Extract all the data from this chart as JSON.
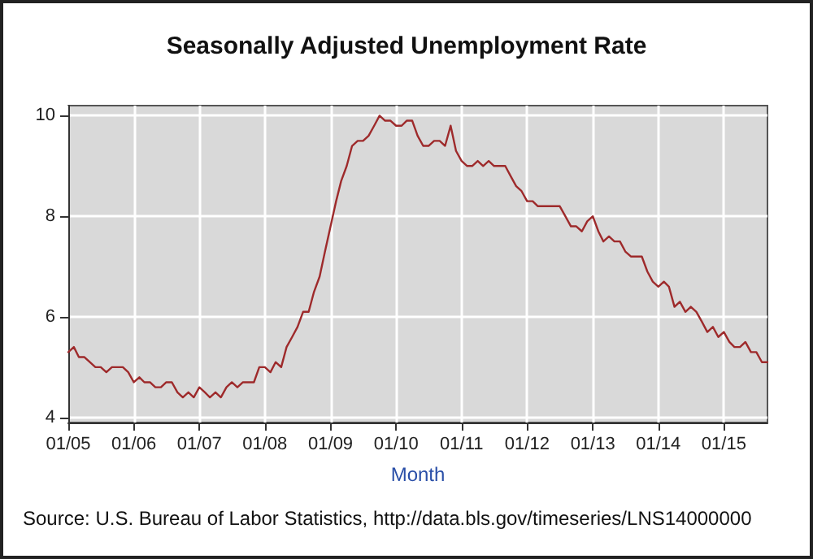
{
  "chart_data": {
    "type": "line",
    "title": "Seasonally Adjusted Unemployment Rate",
    "xlabel": "Month",
    "annotations": [
      "Source: U.S. Bureau of Labor Statistics, http://data.bls.gov/timeseries/LNS14000000"
    ],
    "x": [
      "2005-01",
      "2005-02",
      "2005-03",
      "2005-04",
      "2005-05",
      "2005-06",
      "2005-07",
      "2005-08",
      "2005-09",
      "2005-10",
      "2005-11",
      "2005-12",
      "2006-01",
      "2006-02",
      "2006-03",
      "2006-04",
      "2006-05",
      "2006-06",
      "2006-07",
      "2006-08",
      "2006-09",
      "2006-10",
      "2006-11",
      "2006-12",
      "2007-01",
      "2007-02",
      "2007-03",
      "2007-04",
      "2007-05",
      "2007-06",
      "2007-07",
      "2007-08",
      "2007-09",
      "2007-10",
      "2007-11",
      "2007-12",
      "2008-01",
      "2008-02",
      "2008-03",
      "2008-04",
      "2008-05",
      "2008-06",
      "2008-07",
      "2008-08",
      "2008-09",
      "2008-10",
      "2008-11",
      "2008-12",
      "2009-01",
      "2009-02",
      "2009-03",
      "2009-04",
      "2009-05",
      "2009-06",
      "2009-07",
      "2009-08",
      "2009-09",
      "2009-10",
      "2009-11",
      "2009-12",
      "2010-01",
      "2010-02",
      "2010-03",
      "2010-04",
      "2010-05",
      "2010-06",
      "2010-07",
      "2010-08",
      "2010-09",
      "2010-10",
      "2010-11",
      "2010-12",
      "2011-01",
      "2011-02",
      "2011-03",
      "2011-04",
      "2011-05",
      "2011-06",
      "2011-07",
      "2011-08",
      "2011-09",
      "2011-10",
      "2011-11",
      "2011-12",
      "2012-01",
      "2012-02",
      "2012-03",
      "2012-04",
      "2012-05",
      "2012-06",
      "2012-07",
      "2012-08",
      "2012-09",
      "2012-10",
      "2012-11",
      "2012-12",
      "2013-01",
      "2013-02",
      "2013-03",
      "2013-04",
      "2013-05",
      "2013-06",
      "2013-07",
      "2013-08",
      "2013-09",
      "2013-10",
      "2013-11",
      "2013-12",
      "2014-01",
      "2014-02",
      "2014-03",
      "2014-04",
      "2014-05",
      "2014-06",
      "2014-07",
      "2014-08",
      "2014-09",
      "2014-10",
      "2014-11",
      "2014-12",
      "2015-01",
      "2015-02",
      "2015-03",
      "2015-04",
      "2015-05",
      "2015-06",
      "2015-07",
      "2015-08",
      "2015-09"
    ],
    "series": [
      {
        "color": "#9e2a2b",
        "values": [
          5.3,
          5.4,
          5.2,
          5.2,
          5.1,
          5.0,
          5.0,
          4.9,
          5.0,
          5.0,
          5.0,
          4.9,
          4.7,
          4.8,
          4.7,
          4.7,
          4.6,
          4.6,
          4.7,
          4.7,
          4.5,
          4.4,
          4.5,
          4.4,
          4.6,
          4.5,
          4.4,
          4.5,
          4.4,
          4.6,
          4.7,
          4.6,
          4.7,
          4.7,
          4.7,
          5.0,
          5.0,
          4.9,
          5.1,
          5.0,
          5.4,
          5.6,
          5.8,
          6.1,
          6.1,
          6.5,
          6.8,
          7.3,
          7.8,
          8.3,
          8.7,
          9.0,
          9.4,
          9.5,
          9.5,
          9.6,
          9.8,
          10.0,
          9.9,
          9.9,
          9.8,
          9.8,
          9.9,
          9.9,
          9.6,
          9.4,
          9.4,
          9.5,
          9.5,
          9.4,
          9.8,
          9.3,
          9.1,
          9.0,
          9.0,
          9.1,
          9.0,
          9.1,
          9.0,
          9.0,
          9.0,
          8.8,
          8.6,
          8.5,
          8.3,
          8.3,
          8.2,
          8.2,
          8.2,
          8.2,
          8.2,
          8.0,
          7.8,
          7.8,
          7.7,
          7.9,
          8.0,
          7.7,
          7.5,
          7.6,
          7.5,
          7.5,
          7.3,
          7.2,
          7.2,
          7.2,
          6.9,
          6.7,
          6.6,
          6.7,
          6.6,
          6.2,
          6.3,
          6.1,
          6.2,
          6.1,
          5.9,
          5.7,
          5.8,
          5.6,
          5.7,
          5.5,
          5.4,
          5.4,
          5.5,
          5.3,
          5.3,
          5.1,
          5.1
        ]
      }
    ],
    "xlim": [
      "2005-01",
      "2015-09"
    ],
    "xticks": [
      {
        "value": "2005-01",
        "label": "01/05"
      },
      {
        "value": "2006-01",
        "label": "01/06"
      },
      {
        "value": "2007-01",
        "label": "01/07"
      },
      {
        "value": "2008-01",
        "label": "01/08"
      },
      {
        "value": "2009-01",
        "label": "01/09"
      },
      {
        "value": "2010-01",
        "label": "01/10"
      },
      {
        "value": "2011-01",
        "label": "01/11"
      },
      {
        "value": "2012-01",
        "label": "01/12"
      },
      {
        "value": "2013-01",
        "label": "01/13"
      },
      {
        "value": "2014-01",
        "label": "01/14"
      },
      {
        "value": "2015-01",
        "label": "01/15"
      }
    ],
    "ylim": [
      3.9,
      10.2
    ],
    "yticks": [
      4,
      6,
      8,
      10
    ],
    "grid": true,
    "marker": "none",
    "line_style": "solid"
  }
}
